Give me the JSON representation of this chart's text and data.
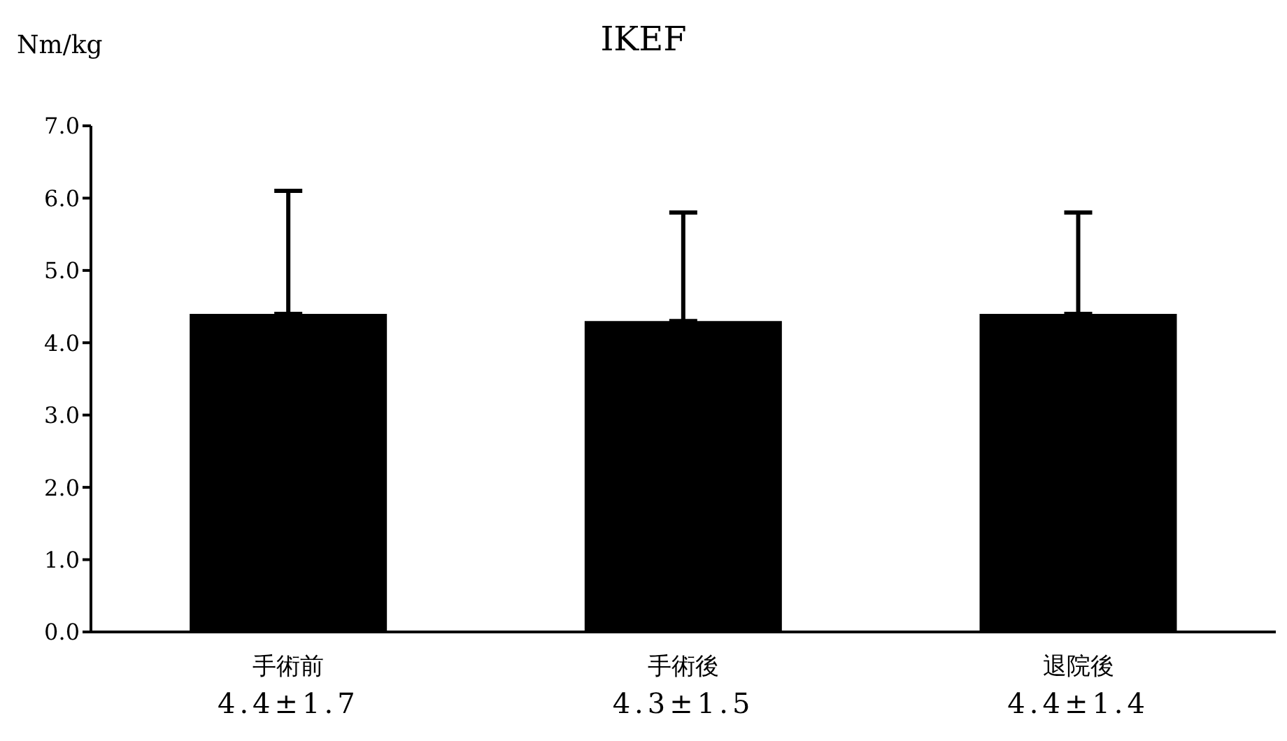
{
  "chart_data": {
    "type": "bar",
    "title": "IKEF",
    "ylabel": "Nm/kg",
    "categories": [
      "手術前",
      "手術後",
      "退院後"
    ],
    "values": [
      4.4,
      4.3,
      4.4
    ],
    "errors": [
      [
        4.4,
        6.1
      ],
      [
        4.3,
        5.8
      ],
      [
        4.4,
        5.8
      ]
    ],
    "value_labels": [
      "4.4±1.7",
      "4.3±1.5",
      "4.4±1.4"
    ],
    "color": "#000000",
    "ylim": [
      0,
      7
    ],
    "yticks": [
      {
        "value": 0,
        "label": "0.0"
      },
      {
        "value": 1,
        "label": "1.0"
      },
      {
        "value": 2,
        "label": "2.0"
      },
      {
        "value": 3,
        "label": "3.0"
      },
      {
        "value": 4,
        "label": "4.0"
      },
      {
        "value": 5,
        "label": "5.0"
      },
      {
        "value": 6,
        "label": "6.0"
      },
      {
        "value": 7,
        "label": "7.0"
      }
    ],
    "grid": false,
    "legend": false
  }
}
